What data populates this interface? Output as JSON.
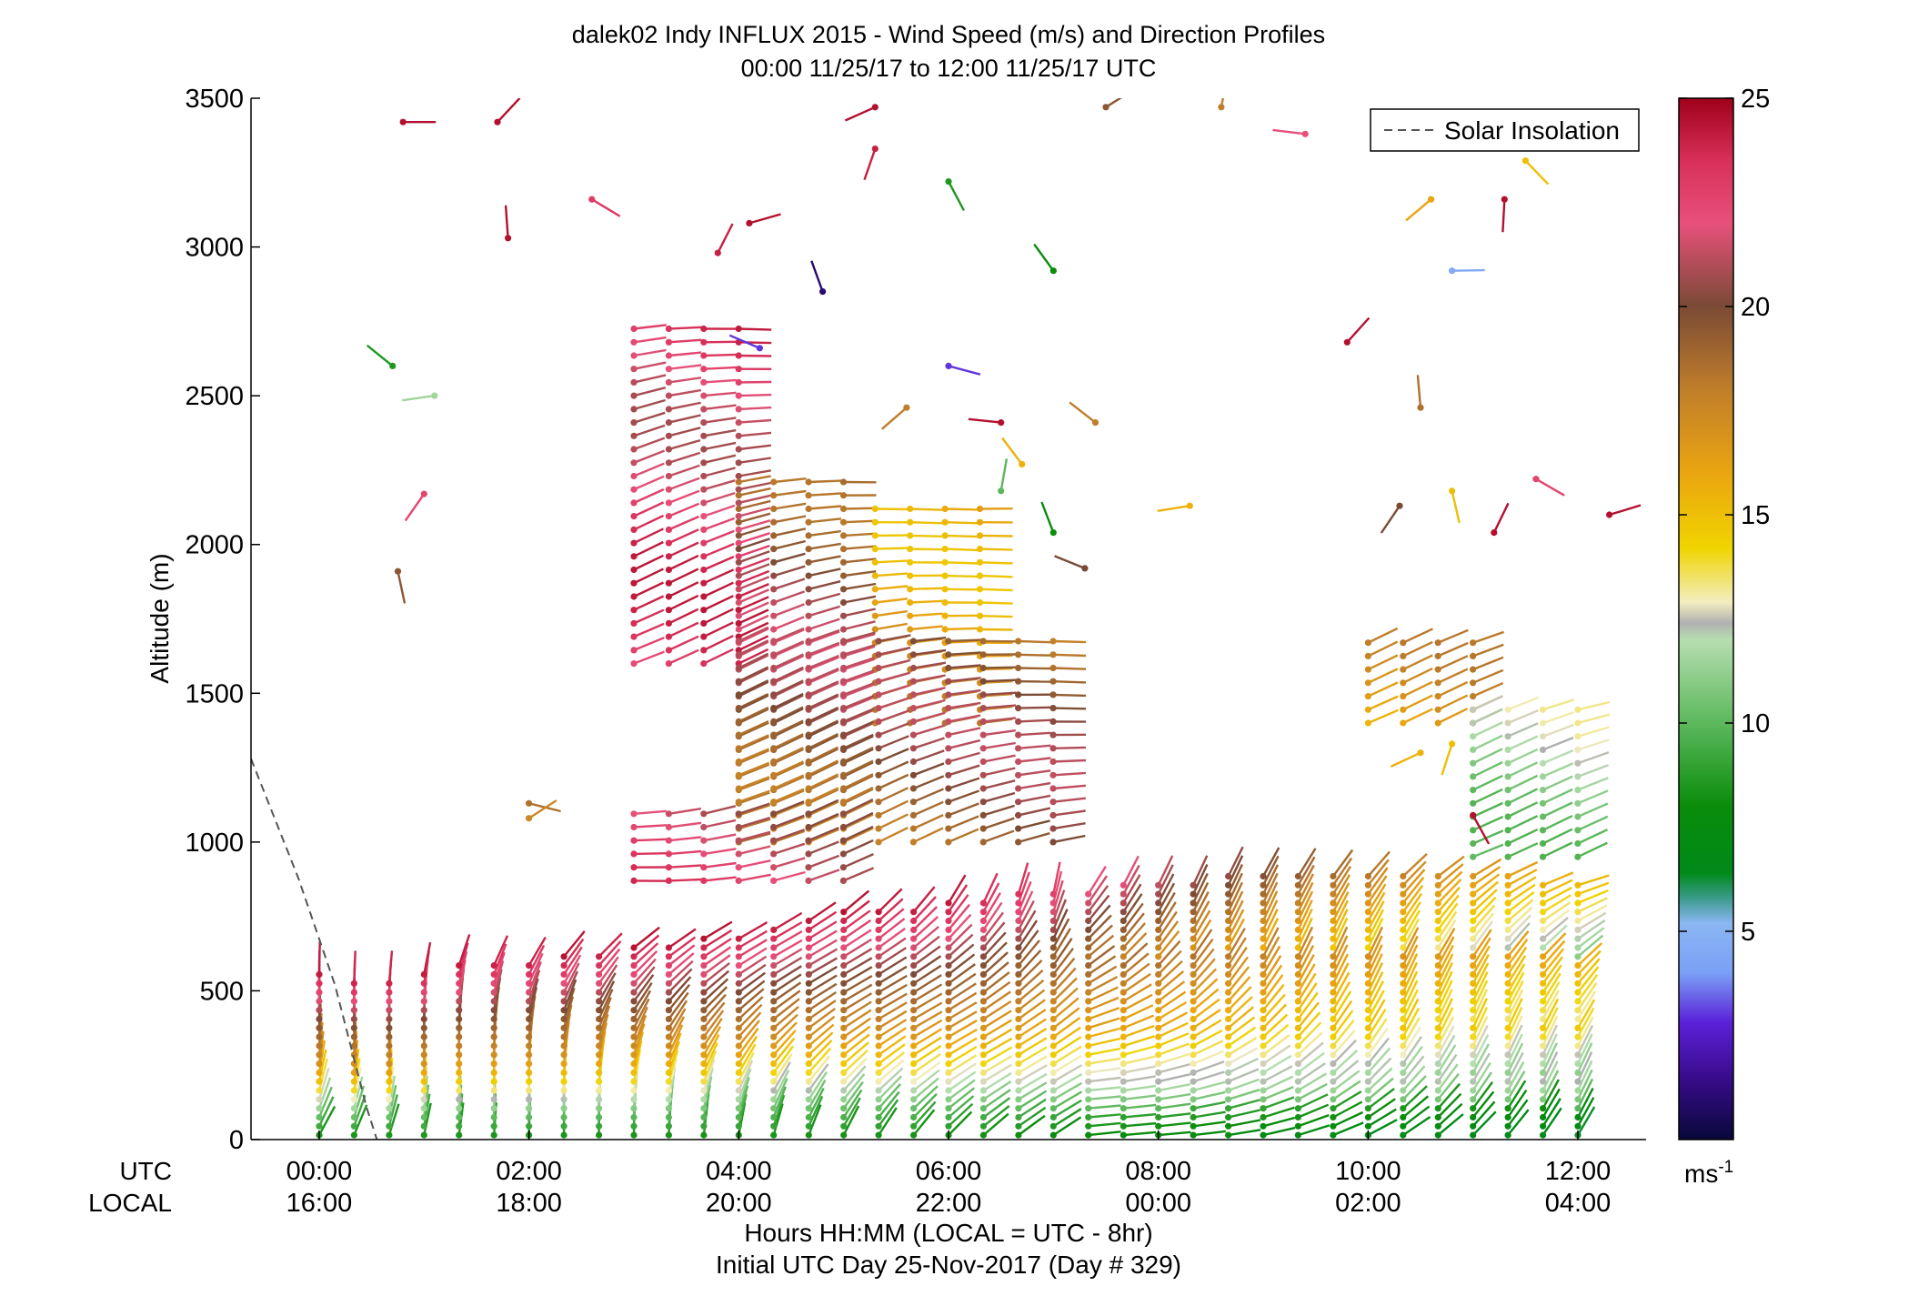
{
  "chart_data": {
    "type": "wind-profile",
    "title": "dalek02 Indy INFLUX 2015 - Wind Speed (m/s) and Direction Profiles",
    "subtitle": "00:00 11/25/17 to 12:00 11/25/17  UTC",
    "ylabel": "Altitude (m)",
    "xlabel": "Hours HH:MM  (LOCAL = UTC - 8hr)",
    "xlabel2": "Initial UTC Day 25-Nov-2017 (Day # 329)",
    "utc_row_label": "UTC",
    "local_row_label": "LOCAL",
    "xlim_hours": [
      -0.65,
      12.65
    ],
    "ylim": [
      0,
      3500
    ],
    "y_ticks": [
      "0",
      "500",
      "1000",
      "1500",
      "2000",
      "2500",
      "3000",
      "3500"
    ],
    "y_tick_values": [
      0,
      500,
      1000,
      1500,
      2000,
      2500,
      3000,
      3500
    ],
    "x_tick_hours": [
      0,
      2,
      4,
      6,
      8,
      10,
      12
    ],
    "x_ticks_utc": [
      "00:00",
      "02:00",
      "04:00",
      "06:00",
      "08:00",
      "10:00",
      "12:00"
    ],
    "x_ticks_local": [
      "16:00",
      "18:00",
      "20:00",
      "22:00",
      "00:00",
      "02:00",
      "04:00"
    ],
    "legend": {
      "entry": "Solar Insolation",
      "placement": "top-right"
    },
    "solar_insolation": {
      "hours": [
        -0.65,
        -0.2,
        0.15,
        0.45,
        0.55
      ],
      "altitude": [
        1280,
        880,
        520,
        110,
        0
      ]
    },
    "colorbar": {
      "label": "ms",
      "label_sup": "-1",
      "range": [
        0,
        25
      ],
      "ticks": [
        "5",
        "10",
        "15",
        "20",
        "25"
      ],
      "tick_values": [
        5,
        10,
        15,
        20,
        25
      ],
      "stops": [
        {
          "v": 0,
          "c": "#08083a"
        },
        {
          "v": 1.5,
          "c": "#3a0c8c"
        },
        {
          "v": 2.8,
          "c": "#5a20d8"
        },
        {
          "v": 4.0,
          "c": "#7aa0f6"
        },
        {
          "v": 5.2,
          "c": "#8ab6f2"
        },
        {
          "v": 5.8,
          "c": "#3a9a8a"
        },
        {
          "v": 6.4,
          "c": "#008a1a"
        },
        {
          "v": 8.0,
          "c": "#0a8c0a"
        },
        {
          "v": 10.0,
          "c": "#5cb85c"
        },
        {
          "v": 12.0,
          "c": "#b6deb0"
        },
        {
          "v": 12.4,
          "c": "#b0b0b0"
        },
        {
          "v": 12.9,
          "c": "#f2eec0"
        },
        {
          "v": 14.2,
          "c": "#f0d400"
        },
        {
          "v": 16.0,
          "c": "#eaa510"
        },
        {
          "v": 18.0,
          "c": "#c07e2a"
        },
        {
          "v": 20.0,
          "c": "#7a4a35"
        },
        {
          "v": 22.0,
          "c": "#e8507a"
        },
        {
          "v": 23.5,
          "c": "#d8305a"
        },
        {
          "v": 25.0,
          "c": "#a0001a"
        }
      ]
    },
    "times_hours": [
      0,
      0.333,
      0.667,
      1.0,
      1.333,
      1.667,
      2.0,
      2.333,
      2.667,
      3.0,
      3.333,
      3.667,
      4.0,
      4.333,
      4.667,
      5.0,
      5.333,
      5.667,
      6.0,
      6.333,
      6.667,
      7.0,
      7.333,
      7.667,
      8.0,
      8.333,
      8.667,
      9.0,
      9.333,
      9.667,
      10.0,
      10.333,
      10.667,
      11.0,
      11.333,
      11.667,
      12.0
    ],
    "boundary_layer_top_m": [
      570,
      550,
      550,
      570,
      600,
      610,
      610,
      620,
      640,
      650,
      660,
      680,
      700,
      730,
      750,
      770,
      780,
      790,
      810,
      820,
      830,
      840,
      850,
      860,
      870,
      880,
      890,
      900,
      900,
      900,
      900,
      900,
      900,
      900,
      900,
      880,
      870
    ],
    "barb_spacing_m": 30,
    "aloft_blocks": [
      {
        "t_start": 3.0,
        "t_end": 4.0,
        "alt_low": 1600,
        "alt_high": 2730,
        "speed": 22.5
      },
      {
        "t_start": 4.0,
        "t_end": 5.3,
        "alt_low": 1130,
        "alt_high": 2250,
        "speed": 20.0
      },
      {
        "t_start": 5.3,
        "t_end": 6.6,
        "alt_low": 1400,
        "alt_high": 2130,
        "speed": 16.5
      },
      {
        "t_start": 4.0,
        "t_end": 7.0,
        "alt_low": 1000,
        "alt_high": 1700,
        "speed": 19.5
      },
      {
        "t_start": 3.0,
        "t_end": 5.0,
        "alt_low": 870,
        "alt_high": 1100,
        "speed": 22.0
      },
      {
        "t_start": 10.0,
        "t_end": 11.3,
        "alt_low": 1400,
        "alt_high": 1700,
        "speed": 16.5
      },
      {
        "t_start": 11.0,
        "t_end": 12.0,
        "alt_low": 950,
        "alt_high": 1450,
        "speed": 11.5
      }
    ],
    "scattered_barbs": [
      {
        "t": 0.8,
        "alt": 3420,
        "speed": 24.5
      },
      {
        "t": 1.7,
        "alt": 3420,
        "speed": 24.5
      },
      {
        "t": 1.8,
        "alt": 3030,
        "speed": 24.5
      },
      {
        "t": 0.7,
        "alt": 2600,
        "speed": 8.5
      },
      {
        "t": 1.1,
        "alt": 2500,
        "speed": 11.5
      },
      {
        "t": 1.0,
        "alt": 2170,
        "speed": 22.5
      },
      {
        "t": 0.75,
        "alt": 1910,
        "speed": 19.5
      },
      {
        "t": 2.6,
        "alt": 3160,
        "speed": 23.0
      },
      {
        "t": 4.1,
        "alt": 3080,
        "speed": 24.5
      },
      {
        "t": 3.8,
        "alt": 2980,
        "speed": 24.0
      },
      {
        "t": 4.8,
        "alt": 2850,
        "speed": 1.0
      },
      {
        "t": 4.2,
        "alt": 2660,
        "speed": 3.0
      },
      {
        "t": 5.3,
        "alt": 3470,
        "speed": 24.5
      },
      {
        "t": 5.3,
        "alt": 3330,
        "speed": 24.0
      },
      {
        "t": 6.0,
        "alt": 3220,
        "speed": 8.5
      },
      {
        "t": 6.0,
        "alt": 2600,
        "speed": 3.0
      },
      {
        "t": 7.5,
        "alt": 3470,
        "speed": 19.5
      },
      {
        "t": 8.6,
        "alt": 3470,
        "speed": 18.0
      },
      {
        "t": 7.0,
        "alt": 2920,
        "speed": 8.0
      },
      {
        "t": 9.4,
        "alt": 3380,
        "speed": 22.0
      },
      {
        "t": 10.6,
        "alt": 3160,
        "speed": 16.0
      },
      {
        "t": 11.3,
        "alt": 3160,
        "speed": 24.5
      },
      {
        "t": 11.5,
        "alt": 3290,
        "speed": 15.0
      },
      {
        "t": 10.8,
        "alt": 2920,
        "speed": 4.5
      },
      {
        "t": 9.8,
        "alt": 2680,
        "speed": 24.5
      },
      {
        "t": 10.5,
        "alt": 2460,
        "speed": 18.5
      },
      {
        "t": 7.4,
        "alt": 2410,
        "speed": 18.0
      },
      {
        "t": 8.3,
        "alt": 2130,
        "speed": 15.5
      },
      {
        "t": 10.3,
        "alt": 2130,
        "speed": 20.0
      },
      {
        "t": 10.8,
        "alt": 2180,
        "speed": 15.0
      },
      {
        "t": 11.6,
        "alt": 2220,
        "speed": 22.5
      },
      {
        "t": 12.3,
        "alt": 2100,
        "speed": 24.5
      },
      {
        "t": 11.2,
        "alt": 2040,
        "speed": 24.5
      },
      {
        "t": 7.0,
        "alt": 2040,
        "speed": 8.0
      },
      {
        "t": 7.3,
        "alt": 1920,
        "speed": 20.0
      },
      {
        "t": 10.5,
        "alt": 1300,
        "speed": 15.5
      },
      {
        "t": 10.8,
        "alt": 1330,
        "speed": 15.0
      },
      {
        "t": 11.0,
        "alt": 1090,
        "speed": 24.5
      },
      {
        "t": 2.0,
        "alt": 1130,
        "speed": 18.5
      },
      {
        "t": 2.0,
        "alt": 1080,
        "speed": 17.5
      },
      {
        "t": 6.5,
        "alt": 2180,
        "speed": 10.0
      },
      {
        "t": 6.7,
        "alt": 2270,
        "speed": 15.5
      },
      {
        "t": 6.5,
        "alt": 2410,
        "speed": 24.5
      },
      {
        "t": 5.6,
        "alt": 2460,
        "speed": 18.0
      }
    ]
  }
}
